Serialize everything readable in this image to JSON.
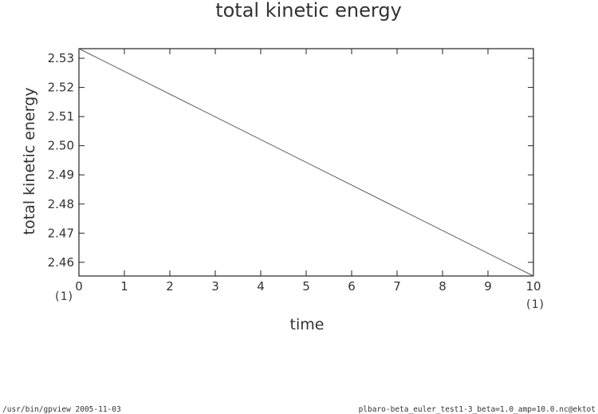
{
  "chart_data": {
    "type": "line",
    "title": "total kinetic energy",
    "xlabel": "time",
    "ylabel": "total kinetic energy",
    "xlim": [
      0,
      10
    ],
    "ylim": [
      2.4553,
      2.5333
    ],
    "x_ticks": [
      0,
      1,
      2,
      3,
      4,
      5,
      6,
      7,
      8,
      9,
      10
    ],
    "x_tick_labels": [
      "0",
      "1",
      "2",
      "3",
      "4",
      "5",
      "6",
      "7",
      "8",
      "9",
      "10"
    ],
    "y_ticks": [
      2.46,
      2.47,
      2.48,
      2.49,
      2.5,
      2.51,
      2.52,
      2.53
    ],
    "y_tick_labels": [
      "2.46",
      "2.47",
      "2.48",
      "2.49",
      "2.50",
      "2.51",
      "2.52",
      "2.53"
    ],
    "x_scale_note_left": "(1)",
    "x_scale_note_right": "(1)",
    "grid": false,
    "series": [
      {
        "x": [
          0,
          10
        ],
        "y": [
          2.5333,
          2.4553
        ]
      }
    ]
  },
  "footer": {
    "left": "/usr/bin/gpview   2005-11-03",
    "right": "plbaro-beta_euler_test1-3_beta=1.0_amp=10.0.nc@ektot"
  }
}
